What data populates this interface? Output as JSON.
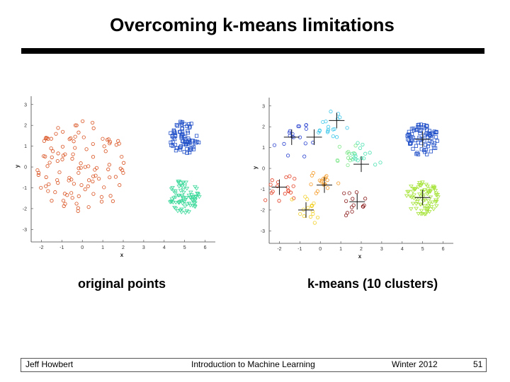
{
  "slide": {
    "title": "Overcoming k-means limitations",
    "caption_left": "original points",
    "caption_right": "k-means (10 clusters)"
  },
  "footer": {
    "author": "Jeff Howbert",
    "course": "Introduction to Machine Learning",
    "term": "Winter 2012",
    "page": "51"
  },
  "chart_data": [
    {
      "type": "scatter",
      "title": "",
      "xlabel": "x",
      "ylabel": "y",
      "xlim": [
        -2.5,
        6.5
      ],
      "ylim": [
        -3.6,
        3.4
      ],
      "x_ticks": [
        "-2",
        "-1",
        "0",
        "1",
        "2",
        "3",
        "4",
        "5",
        "6"
      ],
      "y_ticks": [
        "3",
        "2",
        "1",
        "0",
        "-1",
        "-2",
        "-3"
      ],
      "grid": false,
      "series": [
        {
          "marker": "circle",
          "color": "#d9501e",
          "count": 110,
          "center": [
            0.0,
            0.0
          ],
          "extent": "disk radius 2.3"
        },
        {
          "marker": "square",
          "color": "#2150c8",
          "count": 80,
          "center": [
            5.0,
            1.4
          ],
          "extent": "disk radius 0.8"
        },
        {
          "marker": "triangle",
          "color": "#3fd99c",
          "count": 80,
          "center": [
            5.0,
            -1.4
          ],
          "extent": "disk radius 0.8"
        }
      ]
    },
    {
      "type": "scatter",
      "title": "",
      "xlabel": "x",
      "ylabel": "y",
      "xlim": [
        -2.5,
        6.5
      ],
      "ylim": [
        -3.6,
        3.4
      ],
      "x_ticks": [
        "-2",
        "-1",
        "0",
        "1",
        "2",
        "3",
        "4",
        "5",
        "6"
      ],
      "y_ticks": [
        "3",
        "2",
        "1",
        "0",
        "-1",
        "-2",
        "-3"
      ],
      "grid": false,
      "centroid_marker": "+",
      "centroids": [
        [
          0.8,
          2.3
        ],
        [
          -0.3,
          1.5
        ],
        [
          2.0,
          0.2
        ],
        [
          -2.0,
          -0.9
        ],
        [
          0.2,
          -0.8
        ],
        [
          -0.7,
          -2.0
        ],
        [
          1.8,
          -1.6
        ],
        [
          5.0,
          1.4
        ],
        [
          5.0,
          -1.4
        ],
        [
          -1.4,
          1.5
        ]
      ],
      "series": [
        {
          "marker": "circle",
          "color": "#2a42d0",
          "count": 18,
          "center": [
            -1.2,
            1.3
          ],
          "extent": "spread 0.7"
        },
        {
          "marker": "circle",
          "color": "#38c6ea",
          "count": 18,
          "center": [
            0.3,
            2.0
          ],
          "extent": "spread 0.7"
        },
        {
          "marker": "circle",
          "color": "#47e0b0",
          "count": 16,
          "center": [
            2.0,
            0.4
          ],
          "extent": "spread 0.6"
        },
        {
          "marker": "circle",
          "color": "#7ee78a",
          "count": 12,
          "center": [
            1.3,
            0.6
          ],
          "extent": "spread 0.4"
        },
        {
          "marker": "circle",
          "color": "#e23a1e",
          "count": 18,
          "center": [
            -1.8,
            -1.0
          ],
          "extent": "spread 0.6"
        },
        {
          "marker": "circle",
          "color": "#f49a26",
          "count": 18,
          "center": [
            0.1,
            -0.8
          ],
          "extent": "spread 0.6"
        },
        {
          "marker": "circle",
          "color": "#f2d028",
          "count": 16,
          "center": [
            -0.6,
            -2.0
          ],
          "extent": "spread 0.5"
        },
        {
          "marker": "circle",
          "color": "#8a1a1a",
          "count": 14,
          "center": [
            1.7,
            -1.8
          ],
          "extent": "spread 0.6"
        },
        {
          "marker": "square",
          "color": "#2150c8",
          "count": 80,
          "center": [
            5.0,
            1.4
          ],
          "extent": "disk radius 0.8"
        },
        {
          "marker": "triangle",
          "color": "#a6e33a",
          "count": 80,
          "center": [
            5.0,
            -1.4
          ],
          "extent": "disk radius 0.8"
        }
      ]
    }
  ]
}
